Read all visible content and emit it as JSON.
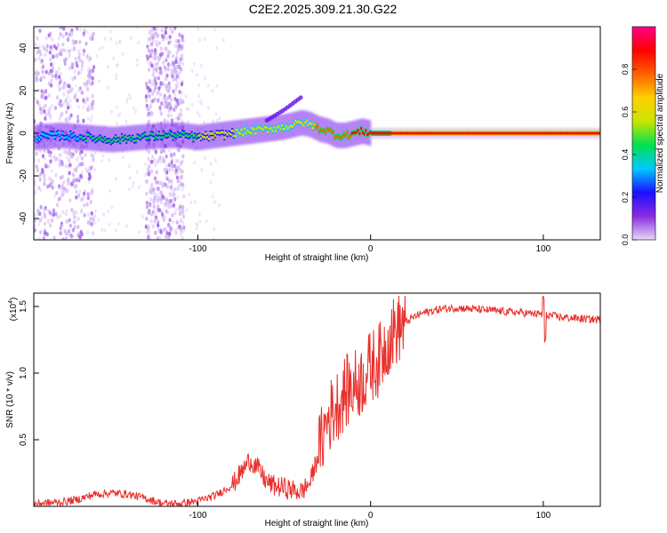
{
  "title": "C2E2.2025.309.21.30.G22",
  "chart_data": [
    {
      "type": "heatmap",
      "xlabel": "Height of straight line (km)",
      "ylabel": "Frequency (Hz)",
      "xlim": [
        -195,
        133
      ],
      "ylim": [
        -50,
        50
      ],
      "xticks": [
        -100,
        0,
        100
      ],
      "xtick_labels": [
        "-100",
        "0",
        "100"
      ],
      "yticks": [
        -40,
        -20,
        0,
        20,
        40
      ],
      "ytick_labels": [
        "-40",
        "-20",
        "0",
        "20",
        "40"
      ],
      "colorbar": {
        "label": "Normalized spectral amplitude",
        "range": [
          0,
          1
        ],
        "ticks": [
          0.0,
          0.2,
          0.4,
          0.6,
          0.8
        ],
        "tick_labels": [
          "0.0",
          "0.2",
          "0.4",
          "0.6",
          "0.8"
        ],
        "colors": [
          "#e8d8f8",
          "#8a2be2",
          "#1a10ff",
          "#00c8ff",
          "#00e050",
          "#c8e600",
          "#ffd000",
          "#ff6000",
          "#ff0000",
          "#ff0088"
        ]
      },
      "ridge": {
        "x": [
          -195,
          -180,
          -165,
          -150,
          -135,
          -120,
          -110,
          -100,
          -90,
          -80,
          -70,
          -60,
          -50,
          -45,
          -40,
          -35,
          -30,
          -25,
          -20,
          -15,
          -10,
          -5,
          0,
          5,
          20,
          60,
          100,
          133
        ],
        "freq": [
          -2,
          -1,
          -2,
          -3,
          -2,
          -1,
          -1,
          -2,
          -1,
          0,
          1,
          2,
          3,
          4,
          5,
          4,
          2,
          1,
          -1,
          -1,
          0,
          1,
          0,
          0,
          0,
          0,
          0,
          0
        ],
        "amplitude": [
          0.3,
          0.35,
          0.4,
          0.4,
          0.45,
          0.4,
          0.45,
          0.5,
          0.5,
          0.5,
          0.55,
          0.55,
          0.6,
          0.65,
          0.7,
          0.7,
          0.75,
          0.75,
          0.8,
          0.8,
          0.85,
          0.85,
          0.9,
          0.9,
          0.92,
          0.92,
          0.93,
          0.93
        ]
      },
      "secondary_branch": {
        "x": [
          -60,
          -50,
          -40
        ],
        "freq": [
          6,
          11,
          17
        ]
      },
      "noise_bands": [
        [
          -195,
          -160
        ],
        [
          -130,
          -108
        ]
      ]
    },
    {
      "type": "line",
      "xlabel": "Height of straight line (km)",
      "ylabel": "SNR (10 * v/v)",
      "y_multiplier": "(x10",
      "y_multiplier_exp": "4",
      "xlim": [
        -195,
        133
      ],
      "ylim": [
        0,
        1.6
      ],
      "xticks": [
        -100,
        0,
        100
      ],
      "xtick_labels": [
        "-100",
        "0",
        "100"
      ],
      "yticks": [
        0.5,
        1.0,
        1.5
      ],
      "ytick_labels": [
        "0.5",
        "1.0",
        "1.5"
      ],
      "color": "#e8302c",
      "series": [
        {
          "name": "SNR",
          "x": [
            -195,
            -180,
            -170,
            -160,
            -150,
            -140,
            -130,
            -120,
            -110,
            -100,
            -90,
            -80,
            -75,
            -70,
            -65,
            -60,
            -55,
            -50,
            -45,
            -40,
            -35,
            -30,
            -25,
            -20,
            -15,
            -10,
            -5,
            0,
            5,
            10,
            15,
            20,
            25,
            30,
            40,
            50,
            60,
            70,
            80,
            90,
            100,
            110,
            120,
            133
          ],
          "y": [
            0.02,
            0.03,
            0.05,
            0.09,
            0.1,
            0.09,
            0.06,
            0.02,
            0.02,
            0.04,
            0.08,
            0.16,
            0.25,
            0.35,
            0.28,
            0.18,
            0.15,
            0.14,
            0.12,
            0.11,
            0.18,
            0.4,
            0.65,
            0.75,
            0.85,
            0.9,
            0.95,
            1.05,
            1.1,
            1.25,
            1.33,
            1.38,
            1.42,
            1.45,
            1.48,
            1.49,
            1.48,
            1.47,
            1.46,
            1.45,
            1.44,
            1.42,
            1.41,
            1.4
          ]
        }
      ]
    }
  ]
}
